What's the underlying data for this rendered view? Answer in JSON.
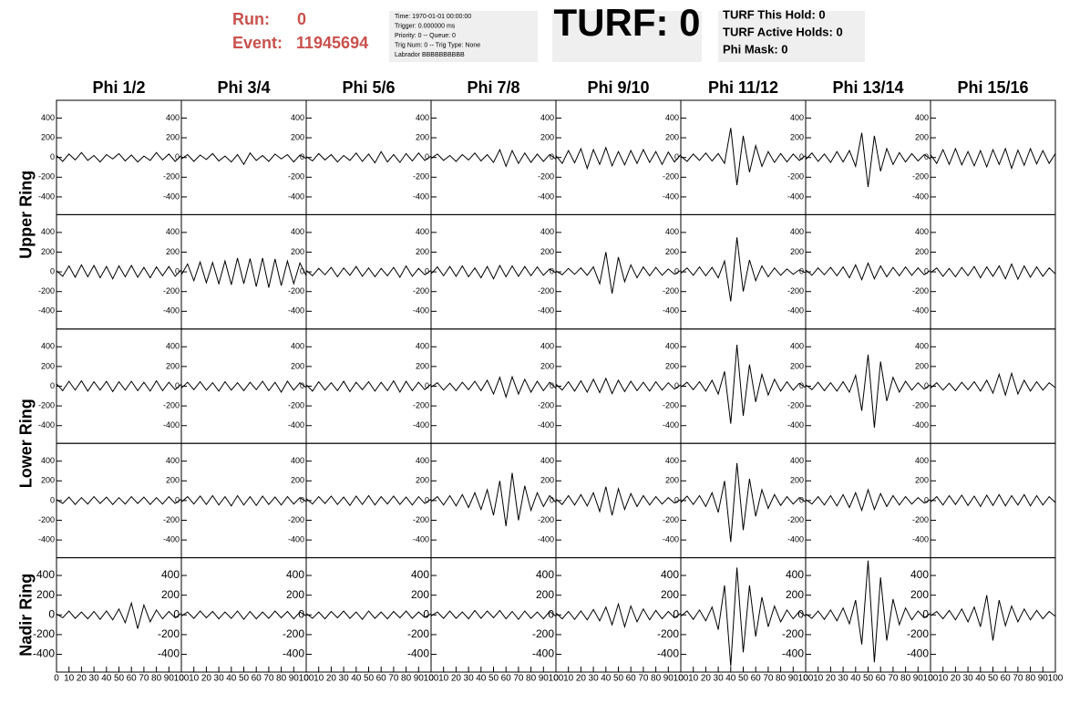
{
  "header": {
    "run_label": "Run:",
    "run": "0",
    "event_label": "Event:",
    "event": "11945694",
    "info": [
      "Time: 1970-01-01 00:00:00",
      "Trigger: 0.000000 ms",
      "Priority: 0 -- Queue: 0",
      "Trig Num: 0 -- Trig Type: None",
      "Labrador BBBBBBBBBB"
    ],
    "turf": "TURF: 0",
    "turf_info": [
      "TURF This Hold: 0",
      "TURF Active Holds: 0",
      "Phi Mask: 0"
    ]
  },
  "chart_data": {
    "type": "line",
    "column_labels": [
      "Phi 1/2",
      "Phi 3/4",
      "Phi 5/6",
      "Phi 7/8",
      "Phi 9/10",
      "Phi 11/12",
      "Phi 13/14",
      "Phi 15/16"
    ],
    "row_labels": [
      "Upper Ring",
      "Lower Ring",
      "Nadir Ring"
    ],
    "color": "#000000",
    "x": [
      0,
      5,
      10,
      15,
      20,
      25,
      30,
      35,
      40,
      45,
      50,
      55,
      60,
      65,
      70,
      75,
      80,
      85,
      90,
      95,
      100
    ],
    "xlim": [
      0,
      100
    ],
    "xticks": [
      0,
      10,
      20,
      30,
      40,
      50,
      60,
      70,
      80,
      90,
      100
    ],
    "ylim": [
      -580,
      580
    ],
    "yticks": [
      -400,
      -200,
      0,
      200,
      400
    ],
    "panels": [
      [
        [
          20,
          -40,
          35,
          -25,
          50,
          -30,
          20,
          -45,
          30,
          -15,
          40,
          -35,
          25,
          -45,
          15,
          -30,
          50,
          -25,
          35,
          -40,
          20
        ],
        [
          -15,
          30,
          -40,
          25,
          -20,
          40,
          -35,
          15,
          -45,
          30,
          -70,
          45,
          -30,
          20,
          -40,
          35,
          -15,
          30,
          -45,
          25,
          -10
        ],
        [
          10,
          -35,
          40,
          -25,
          30,
          -45,
          20,
          -30,
          45,
          -40,
          35,
          -55,
          60,
          -45,
          30,
          -50,
          40,
          -35,
          45,
          -30,
          15
        ],
        [
          -10,
          35,
          -30,
          20,
          -40,
          30,
          -25,
          45,
          -35,
          30,
          -50,
          80,
          -90,
          70,
          -60,
          45,
          -50,
          35,
          -40,
          30,
          -15
        ],
        [
          20,
          -60,
          70,
          -55,
          90,
          -110,
          80,
          -70,
          100,
          -85,
          60,
          -75,
          70,
          -60,
          80,
          -50,
          60,
          -70,
          55,
          -45,
          30
        ],
        [
          15,
          -40,
          35,
          -30,
          45,
          -35,
          40,
          -60,
          300,
          -280,
          220,
          -150,
          120,
          -90,
          60,
          -50,
          40,
          -45,
          35,
          -30,
          20
        ],
        [
          -20,
          45,
          -40,
          35,
          -50,
          60,
          -45,
          70,
          -90,
          250,
          -300,
          220,
          -140,
          90,
          -70,
          50,
          -45,
          40,
          -35,
          30,
          -15
        ],
        [
          30,
          -60,
          80,
          -70,
          90,
          -75,
          60,
          -85,
          70,
          -95,
          80,
          -70,
          90,
          -110,
          75,
          -80,
          90,
          -65,
          70,
          -60,
          40
        ]
      ],
      [
        [
          10,
          -45,
          60,
          -55,
          70,
          -50,
          65,
          -60,
          55,
          -70,
          60,
          -50,
          65,
          -55,
          45,
          -60,
          50,
          -40,
          55,
          -45,
          20
        ],
        [
          -30,
          80,
          -90,
          100,
          -110,
          95,
          -120,
          110,
          -130,
          140,
          -120,
          135,
          -150,
          140,
          -160,
          130,
          -140,
          110,
          -120,
          90,
          -40
        ],
        [
          15,
          -40,
          35,
          -30,
          45,
          -50,
          40,
          -35,
          55,
          -45,
          40,
          -50,
          35,
          -40,
          45,
          -55,
          60,
          -45,
          35,
          -30,
          15
        ],
        [
          -20,
          50,
          -40,
          55,
          -45,
          60,
          -50,
          40,
          -60,
          55,
          -70,
          65,
          -50,
          60,
          -45,
          55,
          -40,
          50,
          -35,
          30,
          -10
        ],
        [
          10,
          -30,
          35,
          -25,
          40,
          -35,
          50,
          -120,
          200,
          -220,
          150,
          -100,
          70,
          -60,
          50,
          -40,
          45,
          -35,
          30,
          -25,
          15
        ],
        [
          -15,
          40,
          -35,
          50,
          -40,
          45,
          -60,
          110,
          -300,
          350,
          -200,
          120,
          -90,
          60,
          -50,
          40,
          -35,
          30,
          -25,
          20,
          -10
        ],
        [
          20,
          -35,
          40,
          -30,
          45,
          -40,
          50,
          -60,
          70,
          -80,
          90,
          -70,
          60,
          -50,
          45,
          -40,
          50,
          -35,
          40,
          -30,
          15
        ],
        [
          -10,
          40,
          -45,
          35,
          -50,
          45,
          -40,
          55,
          -60,
          50,
          -45,
          60,
          -70,
          80,
          -75,
          60,
          -55,
          50,
          -45,
          40,
          -20
        ]
      ],
      [
        [
          25,
          -45,
          50,
          -40,
          55,
          -50,
          45,
          -40,
          50,
          -55,
          45,
          -40,
          50,
          -45,
          40,
          -50,
          55,
          -45,
          40,
          -35,
          20
        ],
        [
          -20,
          40,
          -35,
          45,
          -40,
          35,
          -50,
          45,
          -40,
          35,
          -45,
          40,
          -35,
          50,
          -45,
          40,
          -60,
          50,
          -40,
          35,
          -15
        ],
        [
          15,
          -50,
          45,
          -40,
          35,
          -45,
          50,
          -55,
          40,
          -35,
          45,
          -50,
          40,
          -45,
          55,
          -60,
          50,
          -45,
          40,
          -35,
          20
        ],
        [
          -10,
          35,
          -40,
          30,
          -45,
          40,
          -35,
          50,
          -45,
          60,
          -80,
          90,
          -110,
          95,
          -80,
          70,
          -60,
          50,
          -45,
          40,
          -20
        ],
        [
          20,
          -40,
          45,
          -50,
          55,
          -60,
          70,
          -65,
          80,
          -75,
          60,
          -55,
          50,
          -45,
          40,
          -50,
          45,
          -40,
          35,
          -30,
          15
        ],
        [
          -10,
          40,
          -35,
          45,
          -50,
          60,
          -80,
          150,
          -380,
          420,
          -300,
          220,
          -160,
          120,
          -90,
          70,
          -50,
          45,
          -40,
          30,
          -15
        ],
        [
          15,
          -35,
          40,
          -45,
          35,
          -50,
          45,
          -60,
          110,
          -250,
          320,
          -420,
          250,
          -150,
          90,
          -60,
          50,
          -40,
          35,
          -30,
          15
        ],
        [
          -20,
          35,
          -40,
          30,
          -45,
          40,
          -35,
          45,
          -50,
          60,
          -70,
          120,
          -90,
          130,
          -80,
          60,
          -50,
          45,
          -40,
          35,
          -15
        ]
      ],
      [
        [
          10,
          -30,
          35,
          -40,
          30,
          -35,
          40,
          -30,
          35,
          -40,
          30,
          -35,
          40,
          -30,
          35,
          -40,
          30,
          -35,
          40,
          -30,
          15
        ],
        [
          -15,
          40,
          -35,
          45,
          -40,
          50,
          -45,
          40,
          -55,
          50,
          -45,
          40,
          -50,
          45,
          -40,
          35,
          -45,
          40,
          -35,
          30,
          -10
        ],
        [
          20,
          -35,
          40,
          -30,
          45,
          -40,
          35,
          -50,
          45,
          -40,
          50,
          -45,
          40,
          -35,
          45,
          -40,
          35,
          -45,
          40,
          -30,
          15
        ],
        [
          -10,
          40,
          -45,
          50,
          -55,
          60,
          -70,
          80,
          -90,
          110,
          -150,
          200,
          -260,
          280,
          -200,
          150,
          -100,
          80,
          -60,
          50,
          -20
        ],
        [
          15,
          -40,
          50,
          -45,
          60,
          -55,
          80,
          -110,
          140,
          -150,
          120,
          -90,
          70,
          -60,
          50,
          -45,
          40,
          -35,
          30,
          -25,
          10
        ],
        [
          -20,
          45,
          -40,
          50,
          -60,
          80,
          -120,
          200,
          -420,
          380,
          -300,
          220,
          -160,
          110,
          -80,
          60,
          -50,
          40,
          -35,
          30,
          -15
        ],
        [
          10,
          -35,
          40,
          -45,
          50,
          -55,
          60,
          -70,
          80,
          -100,
          110,
          -90,
          70,
          -60,
          50,
          -45,
          40,
          -35,
          30,
          -25,
          10
        ],
        [
          -15,
          40,
          -45,
          50,
          -40,
          55,
          -50,
          45,
          -60,
          55,
          -50,
          60,
          -55,
          50,
          -45,
          60,
          -55,
          50,
          -45,
          40,
          -20
        ]
      ],
      [
        [
          10,
          -30,
          40,
          -35,
          30,
          -40,
          35,
          -45,
          40,
          -50,
          60,
          -80,
          120,
          -140,
          100,
          -70,
          50,
          -40,
          35,
          -30,
          15
        ],
        [
          -10,
          30,
          -35,
          40,
          -30,
          35,
          -40,
          30,
          -35,
          40,
          -45,
          35,
          -40,
          30,
          -35,
          40,
          -30,
          35,
          -40,
          30,
          -10
        ],
        [
          15,
          -35,
          30,
          -40,
          35,
          -30,
          40,
          -35,
          30,
          -45,
          40,
          -35,
          30,
          -40,
          35,
          -30,
          40,
          -35,
          30,
          -25,
          10
        ],
        [
          -10,
          30,
          -35,
          40,
          -35,
          30,
          -40,
          45,
          -35,
          40,
          -30,
          45,
          -40,
          35,
          -45,
          40,
          -35,
          30,
          -40,
          35,
          -15
        ],
        [
          20,
          -40,
          35,
          -45,
          40,
          -50,
          55,
          -60,
          80,
          -100,
          110,
          -120,
          90,
          -70,
          60,
          -50,
          45,
          -40,
          35,
          -30,
          15
        ],
        [
          -15,
          40,
          -45,
          50,
          -60,
          80,
          -150,
          300,
          -520,
          480,
          -380,
          300,
          -220,
          180,
          -120,
          90,
          -70,
          50,
          -40,
          35,
          -15
        ],
        [
          10,
          -35,
          40,
          -45,
          50,
          -60,
          70,
          -90,
          150,
          -300,
          550,
          -480,
          380,
          -260,
          160,
          -100,
          70,
          -50,
          40,
          -30,
          15
        ],
        [
          -10,
          35,
          -40,
          45,
          -50,
          60,
          -70,
          80,
          -120,
          200,
          -260,
          150,
          -110,
          90,
          -70,
          60,
          -50,
          45,
          -40,
          35,
          -15
        ]
      ]
    ]
  }
}
